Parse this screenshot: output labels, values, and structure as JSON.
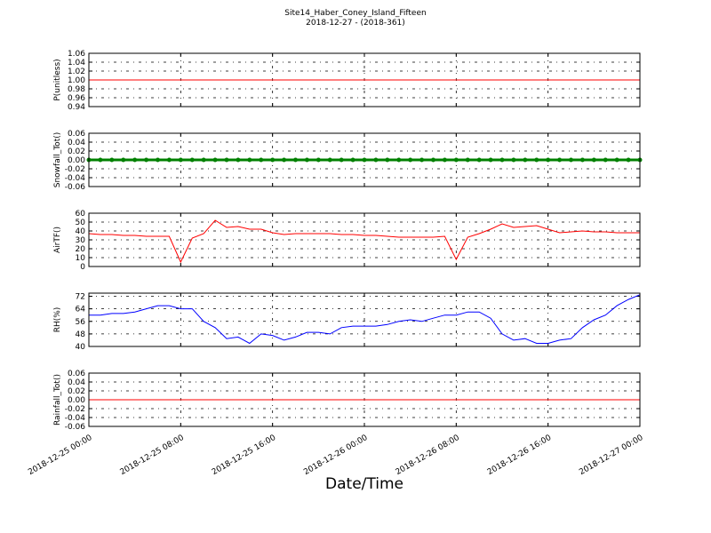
{
  "title": "Site14_Haber_Coney_Island_Fifteen",
  "subtitle": "2018-12-27 - (2018-361)",
  "xlabel": "Date/Time",
  "x": [
    "2018-12-25 00:00",
    "2018-12-25 01:00",
    "2018-12-25 02:00",
    "2018-12-25 03:00",
    "2018-12-25 04:00",
    "2018-12-25 05:00",
    "2018-12-25 06:00",
    "2018-12-25 07:00",
    "2018-12-25 08:00",
    "2018-12-25 09:00",
    "2018-12-25 10:00",
    "2018-12-25 11:00",
    "2018-12-25 12:00",
    "2018-12-25 13:00",
    "2018-12-25 14:00",
    "2018-12-25 15:00",
    "2018-12-25 16:00",
    "2018-12-25 17:00",
    "2018-12-25 18:00",
    "2018-12-25 19:00",
    "2018-12-25 20:00",
    "2018-12-25 21:00",
    "2018-12-25 22:00",
    "2018-12-25 23:00",
    "2018-12-26 00:00",
    "2018-12-26 01:00",
    "2018-12-26 02:00",
    "2018-12-26 03:00",
    "2018-12-26 04:00",
    "2018-12-26 05:00",
    "2018-12-26 06:00",
    "2018-12-26 07:00",
    "2018-12-26 08:00",
    "2018-12-26 09:00",
    "2018-12-26 10:00",
    "2018-12-26 11:00",
    "2018-12-26 12:00",
    "2018-12-26 13:00",
    "2018-12-26 14:00",
    "2018-12-26 15:00",
    "2018-12-26 16:00",
    "2018-12-26 17:00",
    "2018-12-26 18:00",
    "2018-12-26 19:00",
    "2018-12-26 20:00",
    "2018-12-26 21:00",
    "2018-12-26 22:00",
    "2018-12-26 23:00",
    "2018-12-27 00:00"
  ],
  "xlim": [
    "2018-12-25 00:00",
    "2018-12-27 00:00"
  ],
  "xticks": [
    "2018-12-25 00:00",
    "2018-12-25 08:00",
    "2018-12-25 16:00",
    "2018-12-26 00:00",
    "2018-12-26 08:00",
    "2018-12-26 16:00",
    "2018-12-27 00:00"
  ],
  "chart_data": [
    {
      "type": "line",
      "ylabel": "P(unitless)",
      "color": "#ff0000",
      "grid": true,
      "ylim": [
        0.94,
        1.06
      ],
      "yticks": [
        0.94,
        0.96,
        0.98,
        {
          "value": 1,
          "label": "1.00"
        },
        1.02,
        1.04,
        1.06
      ],
      "values": [
        1,
        1,
        1,
        1,
        1,
        1,
        1,
        1,
        1,
        1,
        1,
        1,
        1,
        1,
        1,
        1,
        1,
        1,
        1,
        1,
        1,
        1,
        1,
        1,
        1,
        1,
        1,
        1,
        1,
        1,
        1,
        1,
        1,
        1,
        1,
        1,
        1,
        1,
        1,
        1,
        1,
        1,
        1,
        1,
        1,
        1,
        1,
        1,
        1
      ]
    },
    {
      "type": "line",
      "markers": true,
      "ylabel": "Snowfall_Tot()",
      "color": "#008000",
      "grid": true,
      "ylim": [
        -0.06,
        0.06
      ],
      "yticks": [
        -0.06,
        -0.04,
        -0.02,
        {
          "value": 0,
          "label": "0.00"
        },
        0.02,
        0.04,
        0.06
      ],
      "values": [
        0,
        0,
        0,
        0,
        0,
        0,
        0,
        0,
        0,
        0,
        0,
        0,
        0,
        0,
        0,
        0,
        0,
        0,
        0,
        0,
        0,
        0,
        0,
        0,
        0,
        0,
        0,
        0,
        0,
        0,
        0,
        0,
        0,
        0,
        0,
        0,
        0,
        0,
        0,
        0,
        0,
        0,
        0,
        0,
        0,
        0,
        0,
        0,
        0
      ]
    },
    {
      "type": "line",
      "ylabel": "AirTF()",
      "color": "#ff0000",
      "grid": true,
      "ylim": [
        0,
        60
      ],
      "yticks": [
        0,
        10,
        20,
        30,
        40,
        50,
        60
      ],
      "values": [
        37,
        36,
        36,
        35,
        35,
        34,
        34,
        34,
        5,
        32,
        37,
        52,
        44,
        45,
        42,
        42,
        38,
        36,
        37,
        37,
        37,
        37,
        36,
        36,
        35,
        35,
        34,
        33,
        33,
        33,
        33,
        34,
        8,
        33,
        37,
        42,
        48,
        44,
        45,
        46,
        42,
        38,
        39,
        40,
        39,
        39,
        38,
        38,
        38
      ]
    },
    {
      "type": "line",
      "ylabel": "RH(%)",
      "color": "#0000ff",
      "grid": true,
      "ylim": [
        40,
        74
      ],
      "yticks": [
        40,
        48,
        56,
        64,
        72
      ],
      "values": [
        60,
        60,
        61,
        61,
        62,
        64,
        66,
        66,
        64,
        64,
        56,
        52,
        45,
        46,
        42,
        48,
        47,
        44,
        46,
        49,
        49,
        48,
        52,
        53,
        53,
        53,
        54,
        56,
        57,
        56,
        58,
        60,
        60,
        62,
        62,
        58,
        48,
        44,
        45,
        42,
        42,
        44,
        45,
        52,
        57,
        60,
        66,
        70,
        73
      ]
    },
    {
      "type": "line",
      "ylabel": "Rainfall_Tot()",
      "color": "#ff0000",
      "grid": true,
      "ylim": [
        -0.06,
        0.06
      ],
      "yticks": [
        -0.06,
        -0.04,
        -0.02,
        {
          "value": 0,
          "label": "0.00"
        },
        0.02,
        0.04,
        0.06
      ],
      "values": [
        0,
        0,
        0,
        0,
        0,
        0,
        0,
        0,
        0,
        0,
        0,
        0,
        0,
        0,
        0,
        0,
        0,
        0,
        0,
        0,
        0,
        0,
        0,
        0,
        0,
        0,
        0,
        0,
        0,
        0,
        0,
        0,
        0,
        0,
        0,
        0,
        0,
        0,
        0,
        0,
        0,
        0,
        0,
        0,
        0,
        0,
        0,
        0,
        0
      ]
    }
  ]
}
